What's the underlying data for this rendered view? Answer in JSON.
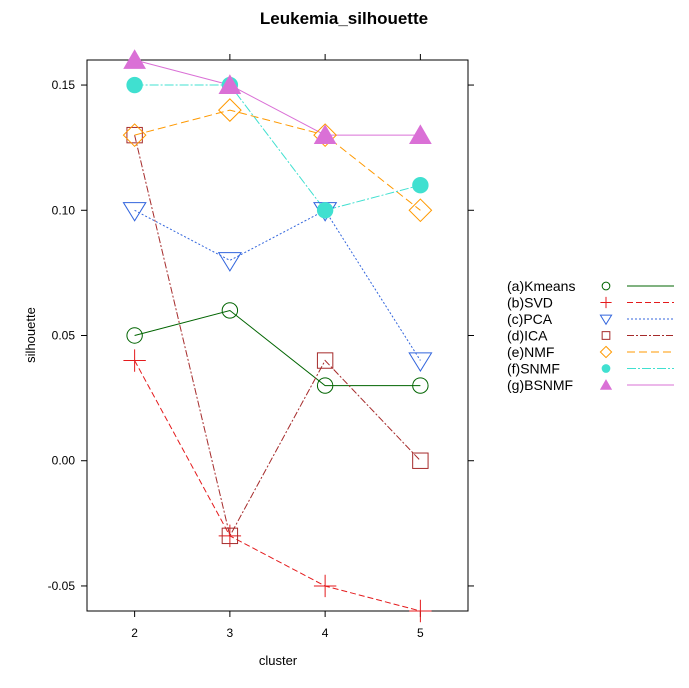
{
  "chart_data": {
    "type": "line",
    "title": "Leukemia_silhouette",
    "xlabel": "cluster",
    "ylabel": "silhouette",
    "x": [
      2,
      3,
      4,
      5
    ],
    "xlim": [
      1.5,
      5.5
    ],
    "ylim": [
      -0.06,
      0.16
    ],
    "xticks": [
      2,
      3,
      4,
      5
    ],
    "xtick_labels": [
      "2",
      "3",
      "4",
      "5"
    ],
    "yticks": [
      -0.05,
      0.0,
      0.05,
      0.1,
      0.15
    ],
    "ytick_labels": [
      "-0.05",
      "0.00",
      "0.05",
      "0.10",
      "0.15"
    ],
    "grid": false,
    "legend_position": "right",
    "series": [
      {
        "name": "(a)Kmeans",
        "values": [
          0.05,
          0.06,
          0.03,
          0.03
        ],
        "color": "#006400",
        "marker": "circle-open",
        "dash": ""
      },
      {
        "name": "(b)SVD",
        "values": [
          0.04,
          -0.03,
          -0.05,
          -0.06
        ],
        "color": "#e41a1c",
        "marker": "plus",
        "dash": "6,3"
      },
      {
        "name": "(c)PCA",
        "values": [
          0.1,
          0.08,
          0.1,
          0.04
        ],
        "color": "#3366dd",
        "marker": "triangle-down-open",
        "dash": "2,2"
      },
      {
        "name": "(d)ICA",
        "values": [
          0.13,
          -0.03,
          0.04,
          0.0
        ],
        "color": "#a52a2a",
        "marker": "square-open",
        "dash": "7,2,2,2"
      },
      {
        "name": "(e)NMF",
        "values": [
          0.13,
          0.14,
          0.13,
          0.1
        ],
        "color": "#ff9900",
        "marker": "diamond-open",
        "dash": "8,4"
      },
      {
        "name": "(f)SNMF",
        "values": [
          0.15,
          0.15,
          0.1,
          0.11
        ],
        "color": "#40e0d0",
        "marker": "circle-filled",
        "dash": "9,2,2,2"
      },
      {
        "name": "(g)BSNMF",
        "values": [
          0.16,
          0.15,
          0.13,
          0.13
        ],
        "color": "#da70d6",
        "marker": "triangle-up-filled",
        "dash": ""
      }
    ]
  }
}
